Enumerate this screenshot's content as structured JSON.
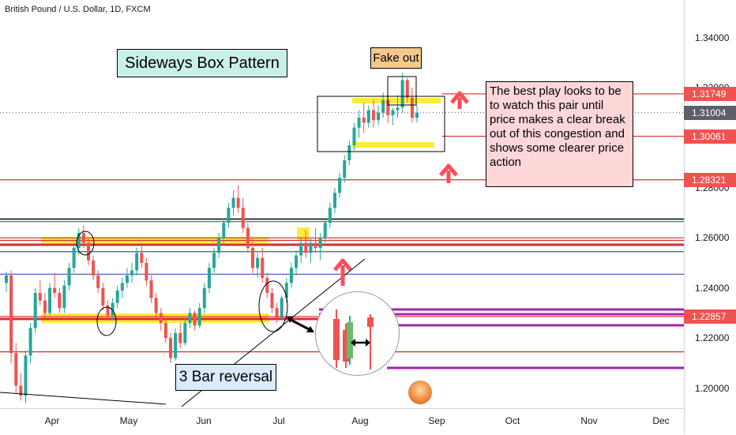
{
  "header": {
    "symbol_line": "British Pound / U.S. Dollar, 1D, FXCM"
  },
  "annotations": {
    "pattern_title": "Sideways Box Pattern",
    "fake_out": "Fake out",
    "note": "The best play looks to be\nto watch this pair until\nprice makes a clear break\nout of this congestion and\nshows some clearer price\naction",
    "reversal_label": "3 Bar reversal"
  },
  "colors": {
    "up": "#26a69a",
    "down": "#ef5350",
    "support_band": "#ffeb3b",
    "resistance_line": "#d32f2f",
    "purple_level": "#9c27b0",
    "blue_level": "#3f51b5",
    "last_price_tag": "#5d606b"
  },
  "chart_data": {
    "type": "candlestick",
    "symbol": "British Pound / U.S. Dollar",
    "interval": "1D",
    "source": "FXCM",
    "x_axis": {
      "ticks": [
        "Apr",
        "May",
        "Jun",
        "Jul",
        "Aug",
        "Sep",
        "Oct",
        "Nov",
        "Dec"
      ]
    },
    "y_axis": {
      "range": [
        1.192,
        1.355
      ],
      "ticks": [
        "1.20000",
        "1.22000",
        "1.24000",
        "1.26000",
        "1.28000",
        "1.30000",
        "1.32000",
        "1.34000"
      ]
    },
    "price_labels": [
      {
        "value": "1.31749",
        "color": "#ef5350"
      },
      {
        "value": "1.31004",
        "color": "#5d606b"
      },
      {
        "value": "1.30061",
        "color": "#ef5350"
      },
      {
        "value": "1.28321",
        "color": "#ef5350"
      },
      {
        "value": "1.22857",
        "color": "#ef5350"
      }
    ],
    "horizontal_levels": [
      {
        "price": 1.3175,
        "color": "#d32f2f"
      },
      {
        "price": 1.3006,
        "color": "#d32f2f"
      },
      {
        "price": 1.2832,
        "color": "#d32f2f"
      },
      {
        "price": 1.2675,
        "color": "#000000"
      },
      {
        "price": 1.2665,
        "color": "#3f51b5"
      },
      {
        "price": 1.26,
        "color": "#d32f2f"
      },
      {
        "price": 1.259,
        "color": "#d32f2f"
      },
      {
        "price": 1.2545,
        "color": "#3f51b5"
      },
      {
        "price": 1.2455,
        "color": "#3f51b5"
      },
      {
        "price": 1.2286,
        "color": "#d32f2f"
      },
      {
        "price": 1.2145,
        "color": "#d32f2f"
      }
    ],
    "candles": [
      [
        1.242,
        1.2465,
        1.2385,
        1.245
      ],
      [
        1.245,
        1.247,
        1.21,
        1.214
      ],
      [
        1.214,
        1.218,
        1.198,
        1.201
      ],
      [
        1.201,
        1.206,
        1.195,
        1.197
      ],
      [
        1.197,
        1.215,
        1.194,
        1.213
      ],
      [
        1.213,
        1.226,
        1.21,
        1.224
      ],
      [
        1.224,
        1.24,
        1.222,
        1.238
      ],
      [
        1.238,
        1.243,
        1.233,
        1.235
      ],
      [
        1.235,
        1.238,
        1.228,
        1.23
      ],
      [
        1.23,
        1.242,
        1.229,
        1.24
      ],
      [
        1.24,
        1.246,
        1.236,
        1.238
      ],
      [
        1.238,
        1.24,
        1.23,
        1.232
      ],
      [
        1.232,
        1.243,
        1.23,
        1.241
      ],
      [
        1.241,
        1.25,
        1.239,
        1.248
      ],
      [
        1.248,
        1.258,
        1.246,
        1.256
      ],
      [
        1.256,
        1.264,
        1.253,
        1.262
      ],
      [
        1.262,
        1.265,
        1.256,
        1.258
      ],
      [
        1.258,
        1.26,
        1.249,
        1.251
      ],
      [
        1.251,
        1.253,
        1.243,
        1.245
      ],
      [
        1.245,
        1.247,
        1.238,
        1.24
      ],
      [
        1.24,
        1.242,
        1.231,
        1.233
      ],
      [
        1.233,
        1.235,
        1.227,
        1.229
      ],
      [
        1.229,
        1.236,
        1.227,
        1.234
      ],
      [
        1.234,
        1.241,
        1.232,
        1.239
      ],
      [
        1.239,
        1.244,
        1.236,
        1.242
      ],
      [
        1.242,
        1.248,
        1.24,
        1.245
      ],
      [
        1.245,
        1.25,
        1.242,
        1.247
      ],
      [
        1.247,
        1.256,
        1.245,
        1.254
      ],
      [
        1.254,
        1.258,
        1.248,
        1.25
      ],
      [
        1.25,
        1.252,
        1.241,
        1.243
      ],
      [
        1.243,
        1.245,
        1.234,
        1.236
      ],
      [
        1.236,
        1.238,
        1.228,
        1.23
      ],
      [
        1.23,
        1.232,
        1.223,
        1.226
      ],
      [
        1.226,
        1.228,
        1.218,
        1.22
      ],
      [
        1.22,
        1.222,
        1.21,
        1.212
      ],
      [
        1.212,
        1.224,
        1.211,
        1.222
      ],
      [
        1.222,
        1.226,
        1.216,
        1.218
      ],
      [
        1.218,
        1.228,
        1.217,
        1.226
      ],
      [
        1.226,
        1.232,
        1.224,
        1.23
      ],
      [
        1.23,
        1.231,
        1.223,
        1.225
      ],
      [
        1.225,
        1.234,
        1.224,
        1.232
      ],
      [
        1.232,
        1.242,
        1.23,
        1.24
      ],
      [
        1.24,
        1.25,
        1.238,
        1.248
      ],
      [
        1.248,
        1.256,
        1.246,
        1.254
      ],
      [
        1.254,
        1.262,
        1.252,
        1.26
      ],
      [
        1.26,
        1.268,
        1.257,
        1.266
      ],
      [
        1.266,
        1.274,
        1.264,
        1.272
      ],
      [
        1.272,
        1.279,
        1.269,
        1.276
      ],
      [
        1.276,
        1.281,
        1.27,
        1.272
      ],
      [
        1.272,
        1.276,
        1.262,
        1.264
      ],
      [
        1.264,
        1.266,
        1.254,
        1.256
      ],
      [
        1.256,
        1.26,
        1.246,
        1.248
      ],
      [
        1.248,
        1.254,
        1.244,
        1.252
      ],
      [
        1.252,
        1.256,
        1.242,
        1.244
      ],
      [
        1.244,
        1.246,
        1.236,
        1.238
      ],
      [
        1.238,
        1.24,
        1.23,
        1.232
      ],
      [
        1.232,
        1.234,
        1.226,
        1.228
      ],
      [
        1.228,
        1.237,
        1.227,
        1.236
      ],
      [
        1.236,
        1.244,
        1.234,
        1.242
      ],
      [
        1.242,
        1.25,
        1.24,
        1.248
      ],
      [
        1.248,
        1.255,
        1.245,
        1.253
      ],
      [
        1.253,
        1.26,
        1.25,
        1.258
      ],
      [
        1.258,
        1.263,
        1.252,
        1.254
      ],
      [
        1.254,
        1.26,
        1.25,
        1.258
      ],
      [
        1.258,
        1.264,
        1.254,
        1.256
      ],
      [
        1.256,
        1.262,
        1.251,
        1.26
      ],
      [
        1.26,
        1.268,
        1.258,
        1.266
      ],
      [
        1.266,
        1.274,
        1.264,
        1.272
      ],
      [
        1.272,
        1.28,
        1.27,
        1.278
      ],
      [
        1.278,
        1.286,
        1.276,
        1.284
      ],
      [
        1.284,
        1.293,
        1.282,
        1.291
      ],
      [
        1.291,
        1.299,
        1.289,
        1.297
      ],
      [
        1.297,
        1.306,
        1.295,
        1.304
      ],
      [
        1.304,
        1.311,
        1.3,
        1.308
      ],
      [
        1.308,
        1.314,
        1.302,
        1.306
      ],
      [
        1.306,
        1.313,
        1.304,
        1.311
      ],
      [
        1.311,
        1.315,
        1.304,
        1.307
      ],
      [
        1.307,
        1.313,
        1.305,
        1.31
      ],
      [
        1.31,
        1.318,
        1.308,
        1.315
      ],
      [
        1.315,
        1.317,
        1.306,
        1.309
      ],
      [
        1.309,
        1.312,
        1.305,
        1.311
      ],
      [
        1.311,
        1.317,
        1.308,
        1.312
      ],
      [
        1.312,
        1.326,
        1.31,
        1.323
      ],
      [
        1.323,
        1.324,
        1.314,
        1.316
      ],
      [
        1.316,
        1.32,
        1.306,
        1.308
      ],
      [
        1.308,
        1.313,
        1.306,
        1.31
      ]
    ]
  }
}
